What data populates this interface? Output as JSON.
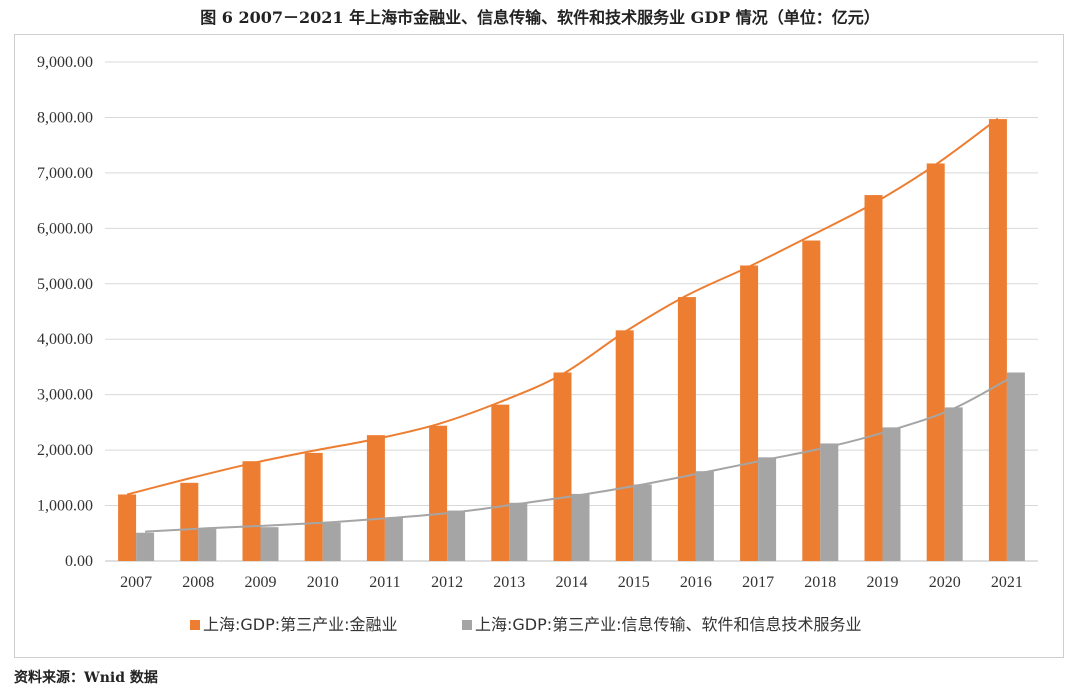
{
  "title": "图 6   2007－2021 年上海市金融业、信息传输、软件和技术服务业 GDP 情况（单位：亿元）",
  "source": "资料来源：Wnid 数据",
  "chart_data": {
    "type": "bar",
    "categories": [
      "2007",
      "2008",
      "2009",
      "2010",
      "2011",
      "2012",
      "2013",
      "2014",
      "2015",
      "2016",
      "2017",
      "2018",
      "2019",
      "2020",
      "2021"
    ],
    "series": [
      {
        "name": "上海:GDP:第三产业:金融业",
        "color": "#ED7D31",
        "values": [
          1200,
          1410,
          1800,
          1950,
          2270,
          2440,
          2820,
          3400,
          4160,
          4760,
          5330,
          5780,
          6600,
          7170,
          7970
        ]
      },
      {
        "name": "上海:GDP:第三产业:信息传输、软件和信息技术服务业",
        "color": "#A5A5A5",
        "values": [
          510,
          580,
          610,
          690,
          780,
          910,
          1050,
          1210,
          1380,
          1620,
          1870,
          2120,
          2410,
          2770,
          3400
        ]
      }
    ],
    "trendlines": [
      {
        "series": 0,
        "color": "#ED7D31",
        "values": [
          1200,
          1490,
          1760,
          1990,
          2200,
          2470,
          2870,
          3370,
          4130,
          4790,
          5310,
          5870,
          6450,
          7150,
          7980
        ]
      },
      {
        "series": 1,
        "color": "#A5A5A5",
        "values": [
          530,
          590,
          640,
          700,
          780,
          880,
          1030,
          1190,
          1380,
          1600,
          1830,
          2060,
          2360,
          2750,
          3360
        ]
      }
    ],
    "ylim": [
      0,
      9000
    ],
    "yticks": [
      "0.00",
      "1,000.00",
      "2,000.00",
      "3,000.00",
      "4,000.00",
      "5,000.00",
      "6,000.00",
      "7,000.00",
      "8,000.00",
      "9,000.00"
    ],
    "ytick_values": [
      0,
      1000,
      2000,
      3000,
      4000,
      5000,
      6000,
      7000,
      8000,
      9000
    ],
    "grid": true,
    "legend_position": "bottom"
  }
}
